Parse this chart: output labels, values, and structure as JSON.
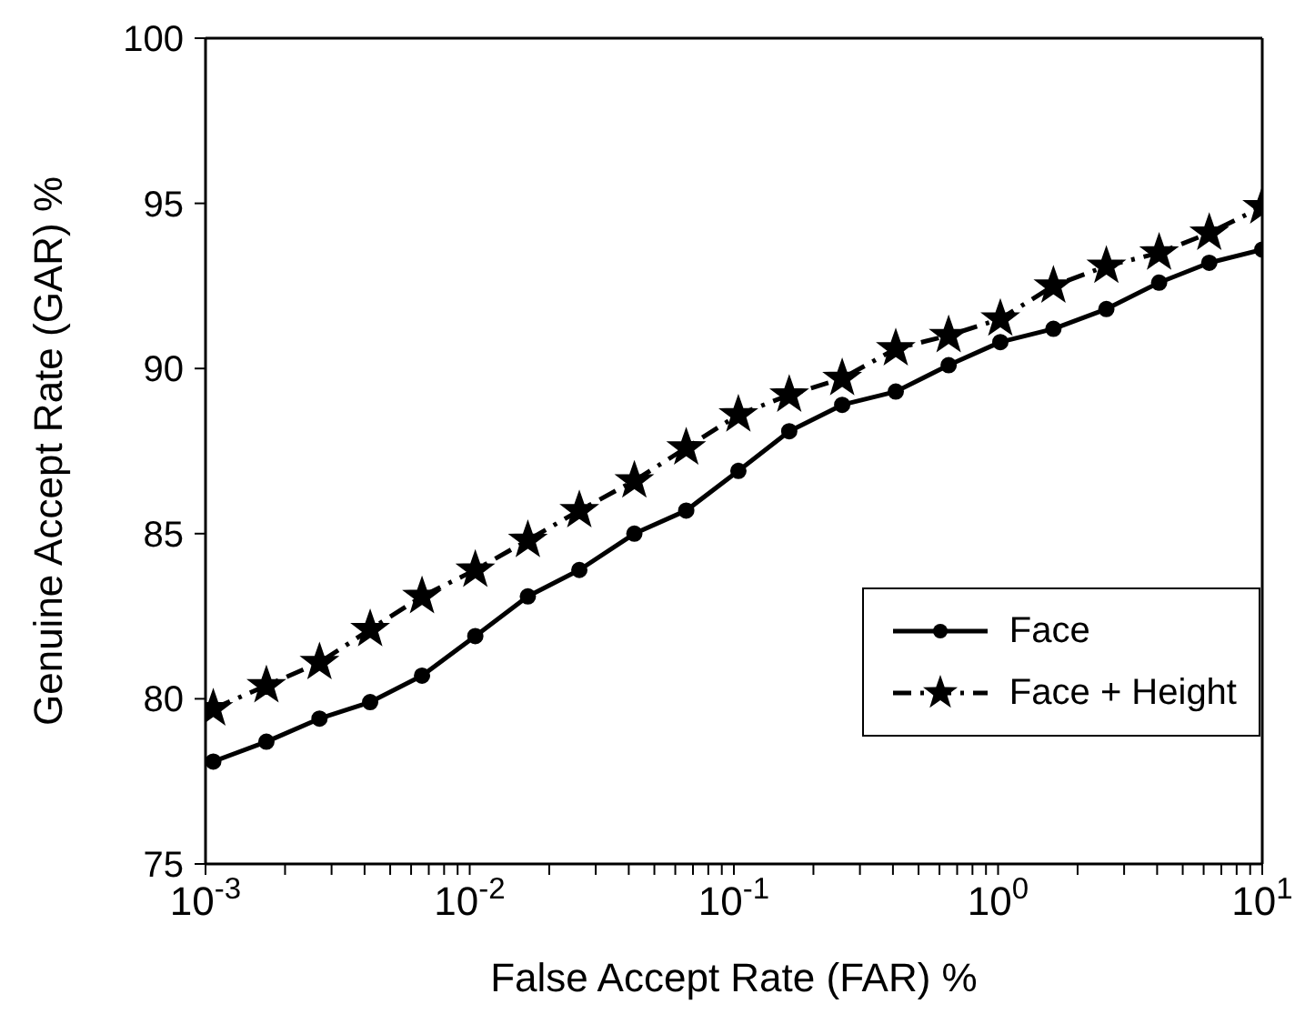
{
  "chart_data": {
    "type": "line",
    "xlabel": "False Accept Rate (FAR) %",
    "ylabel": "Genuine Accept Rate (GAR) %",
    "log": "x",
    "grid": false,
    "legend": "bottom right",
    "x": [
      0.00107,
      0.0017,
      0.0027,
      0.0042,
      0.0066,
      0.0105,
      0.0166,
      0.026,
      0.042,
      0.066,
      0.104,
      0.162,
      0.257,
      0.41,
      0.65,
      1.02,
      1.62,
      2.57,
      4.07,
      6.3,
      10
    ],
    "series": [
      {
        "name": "Face",
        "color": "#000000",
        "marker": "circle",
        "line_style": "solid",
        "values": [
          78.1,
          78.7,
          79.4,
          79.9,
          80.7,
          81.9,
          83.1,
          83.9,
          85.0,
          85.7,
          86.9,
          88.1,
          88.9,
          89.3,
          90.1,
          90.8,
          91.2,
          91.8,
          92.6,
          93.2,
          93.6
        ]
      },
      {
        "name": "Face + Height",
        "color": "#000000",
        "marker": "star",
        "line_style": "dashdot",
        "values": [
          79.7,
          80.4,
          81.1,
          82.1,
          83.1,
          83.9,
          84.8,
          85.7,
          86.6,
          87.6,
          88.6,
          89.2,
          89.7,
          90.6,
          91.0,
          91.5,
          92.5,
          93.1,
          93.5,
          94.1,
          94.9
        ]
      }
    ],
    "xlim": [
      0.001,
      10
    ],
    "xticks": [
      {
        "value": 0.001,
        "label": "10$^{-3}$"
      },
      {
        "value": 0.002,
        "label": null
      },
      {
        "value": 0.003,
        "label": null
      },
      {
        "value": 0.004,
        "label": null
      },
      {
        "value": 0.005,
        "label": null
      },
      {
        "value": 0.006,
        "label": null
      },
      {
        "value": 0.007,
        "label": null
      },
      {
        "value": 0.008,
        "label": null
      },
      {
        "value": 0.009,
        "label": null
      },
      {
        "value": 0.01,
        "label": "10$^{-2}$"
      },
      {
        "value": 0.02,
        "label": null
      },
      {
        "value": 0.03,
        "label": null
      },
      {
        "value": 0.04,
        "label": null
      },
      {
        "value": 0.05,
        "label": null
      },
      {
        "value": 0.06,
        "label": null
      },
      {
        "value": 0.07,
        "label": null
      },
      {
        "value": 0.08,
        "label": null
      },
      {
        "value": 0.09,
        "label": null
      },
      {
        "value": 0.1,
        "label": "10$^{-1}$"
      },
      {
        "value": 0.2,
        "label": null
      },
      {
        "value": 0.3,
        "label": null
      },
      {
        "value": 0.4,
        "label": null
      },
      {
        "value": 0.5,
        "label": null
      },
      {
        "value": 0.6,
        "label": null
      },
      {
        "value": 0.7,
        "label": null
      },
      {
        "value": 0.8,
        "label": null
      },
      {
        "value": 0.9,
        "label": null
      },
      {
        "value": 1,
        "label": "10$^{0}$"
      },
      {
        "value": 2,
        "label": null
      },
      {
        "value": 3,
        "label": null
      },
      {
        "value": 4,
        "label": null
      },
      {
        "value": 5,
        "label": null
      },
      {
        "value": 6,
        "label": null
      },
      {
        "value": 7,
        "label": null
      },
      {
        "value": 8,
        "label": null
      },
      {
        "value": 9,
        "label": null
      },
      {
        "value": 10,
        "label": "10$^{1}$"
      }
    ],
    "ylim": [
      75,
      100
    ],
    "yticks": [
      75,
      80,
      85,
      90,
      95,
      100
    ]
  }
}
